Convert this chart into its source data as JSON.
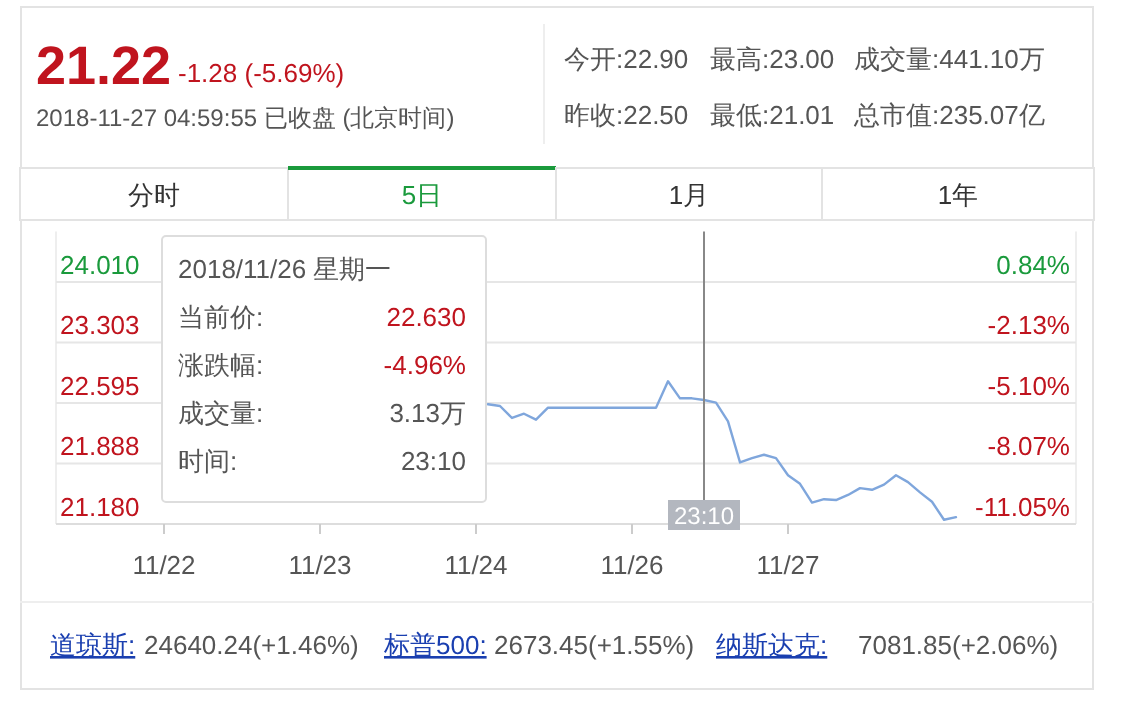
{
  "chart_data": {
    "type": "line",
    "title": "21.22",
    "subtitle": "-1.28 (-5.69%)",
    "annotations": [
      "2018-11-27 04:59:55 已收盘 (北京时间)",
      "今开:22.90",
      "最高:23.00",
      "成交量:441.10万",
      "昨收:22.50",
      "最低:21.01",
      "总市值:235.07亿",
      "分时",
      "5日",
      "1月",
      "1年",
      "2018/11/26 星期一",
      "当前价:",
      "22.630",
      "涨跌幅:",
      "-4.96%",
      "成交量:",
      "3.13万",
      "时间:",
      "23:10",
      "道琼斯:",
      "24640.24(+1.46%)",
      "标普500:",
      "2673.45(+1.55%)",
      "纳斯达克:",
      "7081.85(+2.06%)"
    ],
    "categories": [
      null,
      null,
      null,
      null,
      null,
      null,
      null,
      null,
      null,
      "11/22",
      null,
      null,
      null,
      null,
      null,
      null,
      null,
      null,
      null,
      null,
      null,
      null,
      "11/23",
      null,
      null,
      null,
      null,
      null,
      null,
      null,
      null,
      null,
      null,
      null,
      null,
      "11/24",
      null,
      null,
      null,
      null,
      null,
      null,
      null,
      null,
      null,
      null,
      null,
      null,
      "11/26",
      null,
      null,
      null,
      null,
      null,
      "23:10",
      null,
      null,
      null,
      null,
      null,
      null,
      "11/27",
      null,
      null,
      null,
      null,
      null,
      null,
      null,
      null,
      null,
      null,
      null,
      null,
      null,
      null,
      null,
      null,
      null,
      null,
      null,
      null,
      null,
      null,
      null,
      null
    ],
    "series": [
      {
        "color": "#7fa6dc",
        "values": [
          null,
          null,
          null,
          null,
          null,
          null,
          null,
          null,
          null,
          null,
          null,
          null,
          null,
          null,
          null,
          null,
          null,
          null,
          null,
          null,
          null,
          null,
          null,
          null,
          null,
          null,
          null,
          null,
          null,
          null,
          null,
          null,
          null,
          null,
          null,
          null,
          22.58,
          22.56,
          22.42,
          22.47,
          22.4,
          22.54,
          22.54,
          22.54,
          22.54,
          22.54,
          22.54,
          22.54,
          22.54,
          22.54,
          22.54,
          22.85,
          22.65,
          22.65,
          22.63,
          22.6,
          22.38,
          21.9,
          21.95,
          21.99,
          21.95,
          21.75,
          21.65,
          21.43,
          21.47,
          21.46,
          21.52,
          21.6,
          21.58,
          21.64,
          21.75,
          21.67,
          21.55,
          21.44,
          21.23,
          21.26,
          null,
          null,
          null,
          null,
          null,
          null,
          null,
          null,
          null,
          null
        ]
      }
    ],
    "ylim": [
      21.18,
      24.6
    ],
    "yticks": [
      {
        "value": 21.18,
        "label": "21.180"
      },
      {
        "value": 21.888,
        "label": "21.888"
      },
      {
        "value": 22.595,
        "label": "22.595"
      },
      {
        "value": 23.303,
        "label": "23.303"
      },
      {
        "value": 24.01,
        "label": "24.010"
      }
    ],
    "y2lim": [
      -11.05,
      3.3
    ],
    "y2ticks": [
      {
        "value": -11.05,
        "label": "-11.05%"
      },
      {
        "value": -8.07,
        "label": "-8.07%"
      },
      {
        "value": -5.1,
        "label": "-5.10%"
      },
      {
        "value": -2.13,
        "label": "-2.13%"
      },
      {
        "value": 0.84,
        "label": "0.84%"
      }
    ],
    "ref_lines": [
      {
        "axis": "x",
        "value": "23:10",
        "color": "#888888"
      }
    ],
    "grid": "y",
    "marker": "none",
    "line_style": "solid"
  }
}
